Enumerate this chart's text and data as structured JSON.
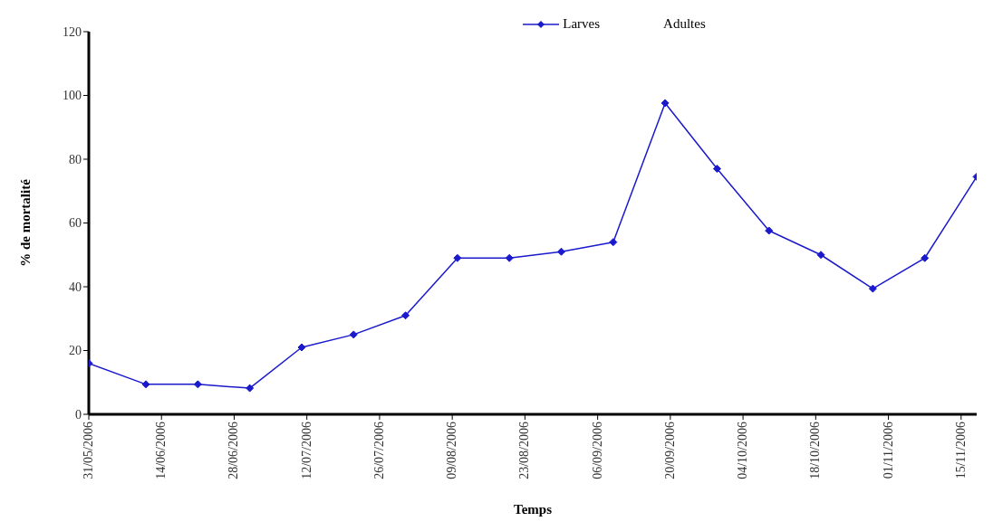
{
  "chart_data": {
    "type": "line",
    "xlabel": "Temps",
    "ylabel": "% de mortalité",
    "x": [
      "2006-05-31",
      "2006-06-11",
      "2006-06-21",
      "2006-07-01",
      "2006-07-11",
      "2006-07-21",
      "2006-07-31",
      "2006-08-10",
      "2006-08-20",
      "2006-08-30",
      "2006-09-09",
      "2006-09-19",
      "2006-09-29",
      "2006-10-09",
      "2006-10-19",
      "2006-10-29",
      "2006-11-08",
      "2006-11-18"
    ],
    "series": [
      {
        "name": "Larves",
        "color": "#1a1acc",
        "values": [
          16,
          9.4,
          9.4,
          8.2,
          21,
          25,
          31,
          49,
          49,
          51,
          54,
          97.6,
          77,
          57.6,
          50,
          39.4,
          49,
          74.5
        ]
      }
    ],
    "annotations": [
      "Adultes"
    ],
    "xlim": [
      "2006-05-31",
      "2006-11-18"
    ],
    "xticks": [
      {
        "value": "2006-05-31",
        "label": "31/05/2006"
      },
      {
        "value": "2006-06-14",
        "label": "14/06/2006"
      },
      {
        "value": "2006-06-28",
        "label": "28/06/2006"
      },
      {
        "value": "2006-07-12",
        "label": "12/07/2006"
      },
      {
        "value": "2006-07-26",
        "label": "26/07/2006"
      },
      {
        "value": "2006-08-09",
        "label": "09/08/2006"
      },
      {
        "value": "2006-08-23",
        "label": "23/08/2006"
      },
      {
        "value": "2006-09-06",
        "label": "06/09/2006"
      },
      {
        "value": "2006-09-20",
        "label": "20/09/2006"
      },
      {
        "value": "2006-10-04",
        "label": "04/10/2006"
      },
      {
        "value": "2006-10-18",
        "label": "18/10/2006"
      },
      {
        "value": "2006-11-01",
        "label": "01/11/2006"
      },
      {
        "value": "2006-11-15",
        "label": "15/11/2006"
      }
    ],
    "ylim": [
      0,
      120
    ],
    "yticks": [
      0,
      20,
      40,
      60,
      80,
      100,
      120
    ],
    "grid": false,
    "legend": "top",
    "marker": "diamond",
    "line_style": "solid"
  }
}
